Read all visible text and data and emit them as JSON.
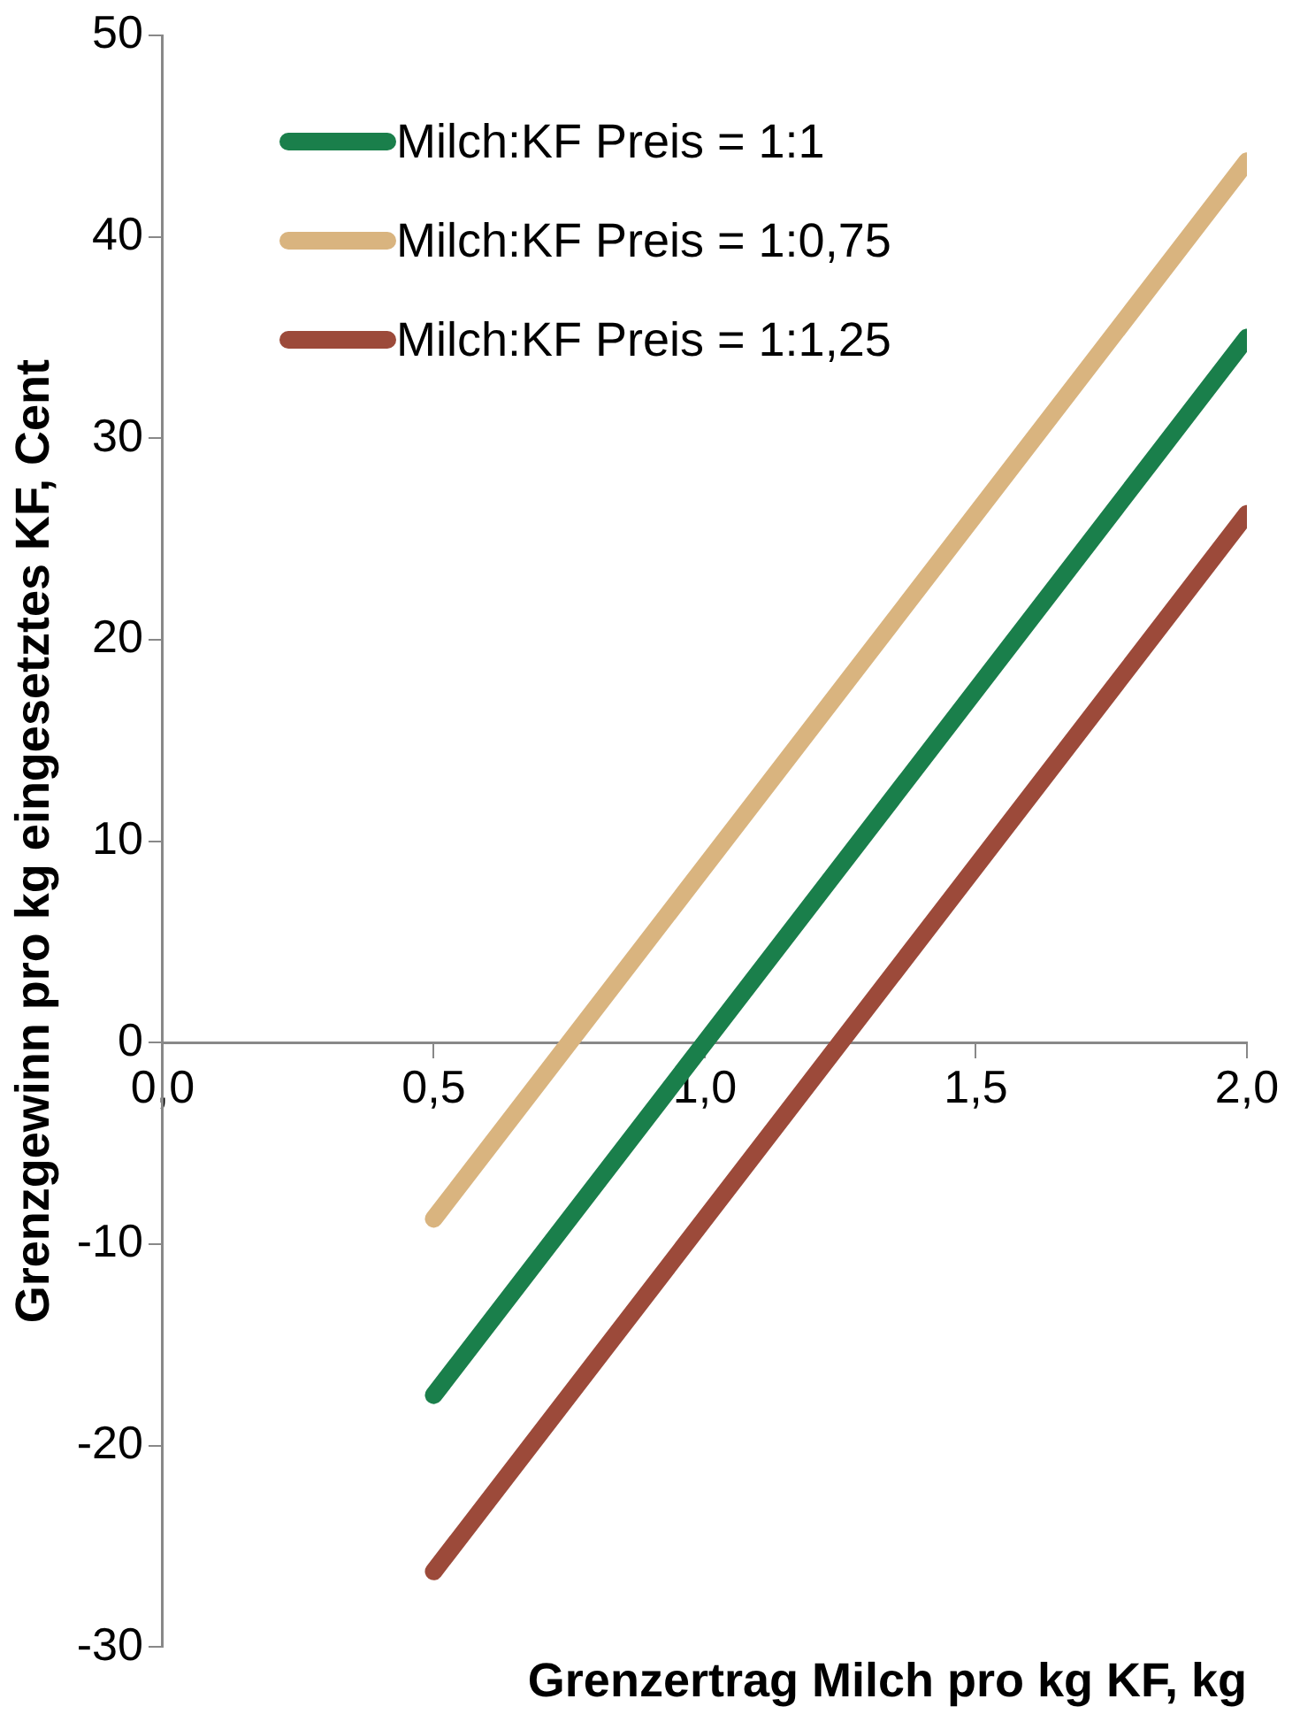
{
  "chart_data": {
    "type": "line",
    "xlabel": "Grenzertrag Milch pro kg KF, kg",
    "ylabel": "Grenzgewinn pro kg eingesetztes KF, Cent",
    "x": [
      0.5,
      2.0
    ],
    "series": [
      {
        "name": "Milch:KF Preis = 1:1",
        "color": "#1a7f4b",
        "values": [
          -17.5,
          35
        ]
      },
      {
        "name": "Milch:KF Preis = 1:0,75",
        "color": "#d9b47f",
        "values": [
          -8.75,
          43.75
        ]
      },
      {
        "name": "Milch:KF Preis = 1:1,25",
        "color": "#9c4a3a",
        "values": [
          -26.25,
          26.25
        ]
      }
    ],
    "xlim": [
      0,
      2
    ],
    "xticks": [
      {
        "value": 0,
        "label": "0,0"
      },
      {
        "value": 0.5,
        "label": "0,5"
      },
      {
        "value": 1,
        "label": "1,0"
      },
      {
        "value": 1.5,
        "label": "1,5"
      },
      {
        "value": 2,
        "label": "2,0"
      }
    ],
    "ylim": [
      -30,
      50
    ],
    "yticks": [
      -30,
      -20,
      -10,
      0,
      10,
      20,
      30,
      40,
      50
    ],
    "grid": false,
    "legend": "top left",
    "marker": "none",
    "line_style": "solid"
  }
}
